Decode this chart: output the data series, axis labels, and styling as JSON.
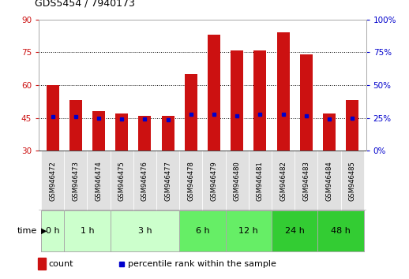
{
  "title": "GDS5454 / 7940173",
  "samples": [
    "GSM946472",
    "GSM946473",
    "GSM946474",
    "GSM946475",
    "GSM946476",
    "GSM946477",
    "GSM946478",
    "GSM946479",
    "GSM946480",
    "GSM946481",
    "GSM946482",
    "GSM946483",
    "GSM946484",
    "GSM946485"
  ],
  "count_values": [
    60,
    53,
    48,
    47,
    46,
    46,
    65,
    83,
    76,
    76,
    84,
    74,
    47,
    53
  ],
  "count_bottoms": [
    30,
    30,
    30,
    30,
    30,
    30,
    30,
    30,
    30,
    30,
    30,
    30,
    30,
    30
  ],
  "percentile_values": [
    45.5,
    45.5,
    45.0,
    44.5,
    44.5,
    44.0,
    46.5,
    46.5,
    46.0,
    46.5,
    46.5,
    46.0,
    44.5,
    45.0
  ],
  "time_groups": [
    {
      "label": "0 h",
      "n_samples": 1,
      "color": "#ccffcc"
    },
    {
      "label": "1 h",
      "n_samples": 2,
      "color": "#ccffcc"
    },
    {
      "label": "3 h",
      "n_samples": 3,
      "color": "#ccffcc"
    },
    {
      "label": "6 h",
      "n_samples": 2,
      "color": "#66ee66"
    },
    {
      "label": "12 h",
      "n_samples": 2,
      "color": "#66ee66"
    },
    {
      "label": "24 h",
      "n_samples": 2,
      "color": "#33cc33"
    },
    {
      "label": "48 h",
      "n_samples": 2,
      "color": "#33cc33"
    }
  ],
  "ylim_left": [
    30,
    90
  ],
  "ylim_right": [
    0,
    100
  ],
  "yticks_left": [
    30,
    45,
    60,
    75,
    90
  ],
  "yticks_right": [
    0,
    25,
    50,
    75,
    100
  ],
  "bar_color": "#cc1111",
  "marker_color": "#0000cc",
  "left_tick_color": "#cc1111",
  "right_tick_color": "#0000cc",
  "grid_dotted_at": [
    45,
    60,
    75
  ],
  "bar_width": 0.55
}
